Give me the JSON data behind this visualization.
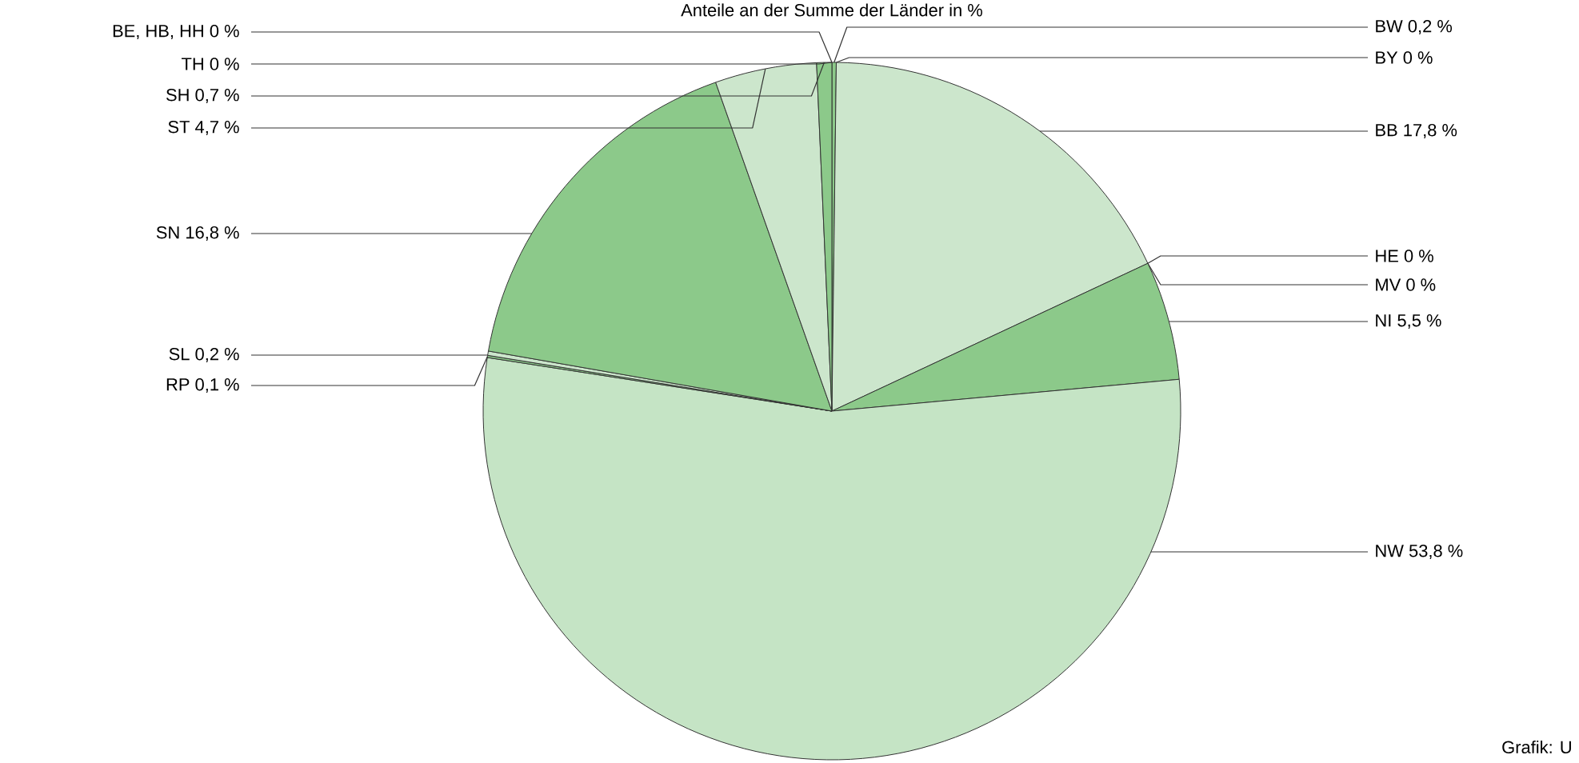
{
  "chart_data": {
    "type": "pie",
    "title": "Anteile an der Summe der Länder in %",
    "categories": [
      "BW",
      "BY",
      "BB",
      "HE",
      "MV",
      "NI",
      "NW",
      "RP",
      "SL",
      "SN",
      "ST",
      "SH",
      "TH",
      "BE, HB, HH"
    ],
    "values": [
      0.2,
      0,
      17.8,
      0,
      0,
      5.5,
      53.8,
      0.1,
      0.2,
      16.8,
      4.7,
      0.7,
      0,
      0
    ],
    "value_labels": [
      "0,2 %",
      "0 %",
      "17,8 %",
      "0 %",
      "0 %",
      "5,5 %",
      "53,8 %",
      "0,1 %",
      "0,2 %",
      "16,8 %",
      "4,7 %",
      "0,7 %",
      "0 %",
      "0 %"
    ],
    "colors": [
      "#8cc98a",
      "#8cc98a",
      "#cce6cc",
      "#8cc98a",
      "#8cc98a",
      "#8cc98a",
      "#c5e4c5",
      "#8cc98a",
      "#cce6cc",
      "#8cc98a",
      "#cce6cc",
      "#8cc98a",
      "#8cc98a",
      "#cce6cc"
    ],
    "annotations": [
      "Grafik: U"
    ]
  }
}
